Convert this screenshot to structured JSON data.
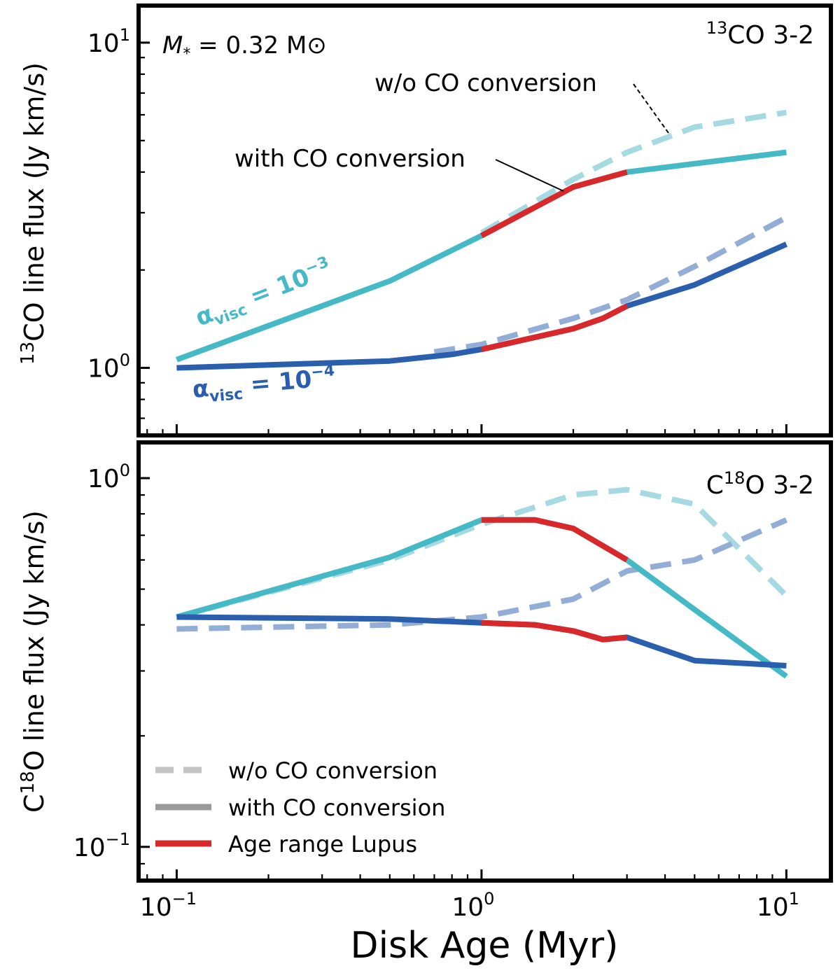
{
  "colors": {
    "light": "#45BAC6",
    "light_dash": "#A6DAE2",
    "dark": "#2A5FAE",
    "dark_dash": "#92AED6",
    "red": "#D9282A",
    "legend_grey": "#9A9A9A",
    "legend_grey_light": "#C4C4C4"
  },
  "chart_data": [
    {
      "type": "line",
      "panel": "top",
      "xscale": "log",
      "yscale": "log",
      "xlim": [
        0.075,
        14
      ],
      "ylim": [
        0.62,
        13
      ],
      "ylabel_pre": "13",
      "ylabel_post": "CO line flux (Jy km/s)",
      "xlabel": "",
      "yticks": [
        {
          "mant": "10",
          "exp": "0",
          "value": 1
        },
        {
          "mant": "10",
          "exp": "1",
          "value": 10
        }
      ],
      "panel_title_sup": "13",
      "panel_title_post": "CO 3-2",
      "mass_label_pre": "M",
      "mass_label_sub": "*",
      "mass_label_post": " = 0.32 M",
      "mass_label_sun": "⊙",
      "annotations": {
        "wo": "w/o CO conversion",
        "with": "with CO conversion"
      },
      "alpha_labels": [
        {
          "sym": "α",
          "sub": "visc",
          "eq": " = 10",
          "exp": "−3",
          "color": "light"
        },
        {
          "sym": "α",
          "sub": "visc",
          "eq": " = 10",
          "exp": "−4",
          "color": "dark"
        }
      ],
      "red_range": [
        1,
        3
      ],
      "series": [
        {
          "name": "α=1e-3 w/o CO conversion",
          "style": "dashed",
          "color": "light_dash",
          "x": [
            1,
            2,
            3,
            5,
            10
          ],
          "y": [
            2.6,
            3.8,
            4.6,
            5.5,
            6.1
          ]
        },
        {
          "name": "α=1e-4 w/o CO conversion",
          "style": "dashed",
          "color": "dark_dash",
          "x": [
            0.7,
            1,
            2,
            3,
            5,
            10
          ],
          "y": [
            1.12,
            1.18,
            1.42,
            1.62,
            2.05,
            2.9
          ]
        },
        {
          "name": "α=1e-3 with CO conversion",
          "style": "solid",
          "color": "light",
          "x": [
            0.1,
            0.5,
            1,
            2,
            3,
            10
          ],
          "y": [
            1.06,
            1.85,
            2.55,
            3.6,
            4.0,
            4.6
          ]
        },
        {
          "name": "α=1e-4 with CO conversion",
          "style": "solid",
          "color": "dark",
          "x": [
            0.1,
            0.5,
            0.8,
            1,
            2,
            2.5,
            3,
            5,
            10
          ],
          "y": [
            1.0,
            1.05,
            1.1,
            1.14,
            1.32,
            1.42,
            1.55,
            1.8,
            2.4
          ]
        }
      ]
    },
    {
      "type": "line",
      "panel": "bottom",
      "xscale": "log",
      "yscale": "log",
      "xlim": [
        0.075,
        14
      ],
      "ylim": [
        0.081,
        1.25
      ],
      "ylabel_pre": "C",
      "ylabel_sup": "18",
      "ylabel_post": "O line flux (Jy km/s)",
      "xlabel": "Disk Age (Myr)",
      "yticks": [
        {
          "mant": "10",
          "exp": "−1",
          "value": 0.1
        },
        {
          "mant": "10",
          "exp": "0",
          "value": 1
        }
      ],
      "xticks": [
        {
          "mant": "10",
          "exp": "−1",
          "value": 0.1
        },
        {
          "mant": "10",
          "exp": "0",
          "value": 1
        },
        {
          "mant": "10",
          "exp": "1",
          "value": 10
        }
      ],
      "panel_title_pre": "C",
      "panel_title_sup": "18",
      "panel_title_post": "O 3-2",
      "red_range": [
        1,
        3
      ],
      "legend": [
        {
          "label": "w/o CO conversion",
          "style": "dashed",
          "color": "legend_grey_light"
        },
        {
          "label": "with CO conversion",
          "style": "solid",
          "color": "legend_grey"
        },
        {
          "label": "Age range Lupus",
          "style": "solid",
          "color": "red"
        }
      ],
      "series": [
        {
          "name": "α=1e-3 w/o CO conversion",
          "style": "dashed",
          "color": "light_dash",
          "x": [
            0.1,
            0.5,
            1,
            2,
            3,
            5,
            10
          ],
          "y": [
            0.42,
            0.6,
            0.75,
            0.9,
            0.93,
            0.85,
            0.48
          ]
        },
        {
          "name": "α=1e-4 w/o CO conversion",
          "style": "dashed",
          "color": "dark_dash",
          "x": [
            0.1,
            0.5,
            1,
            2,
            3,
            5,
            10
          ],
          "y": [
            0.39,
            0.4,
            0.42,
            0.47,
            0.56,
            0.6,
            0.77
          ]
        },
        {
          "name": "α=1e-3 with CO conversion",
          "style": "solid",
          "color": "light",
          "x": [
            0.1,
            0.5,
            1,
            1.5,
            2,
            3,
            5,
            10
          ],
          "y": [
            0.42,
            0.61,
            0.77,
            0.77,
            0.73,
            0.6,
            0.44,
            0.29
          ]
        },
        {
          "name": "α=1e-4 with CO conversion",
          "style": "solid",
          "color": "dark",
          "x": [
            0.1,
            0.5,
            1,
            1.5,
            2,
            2.5,
            3,
            5,
            10
          ],
          "y": [
            0.42,
            0.415,
            0.405,
            0.4,
            0.385,
            0.365,
            0.37,
            0.32,
            0.31
          ]
        }
      ]
    }
  ]
}
